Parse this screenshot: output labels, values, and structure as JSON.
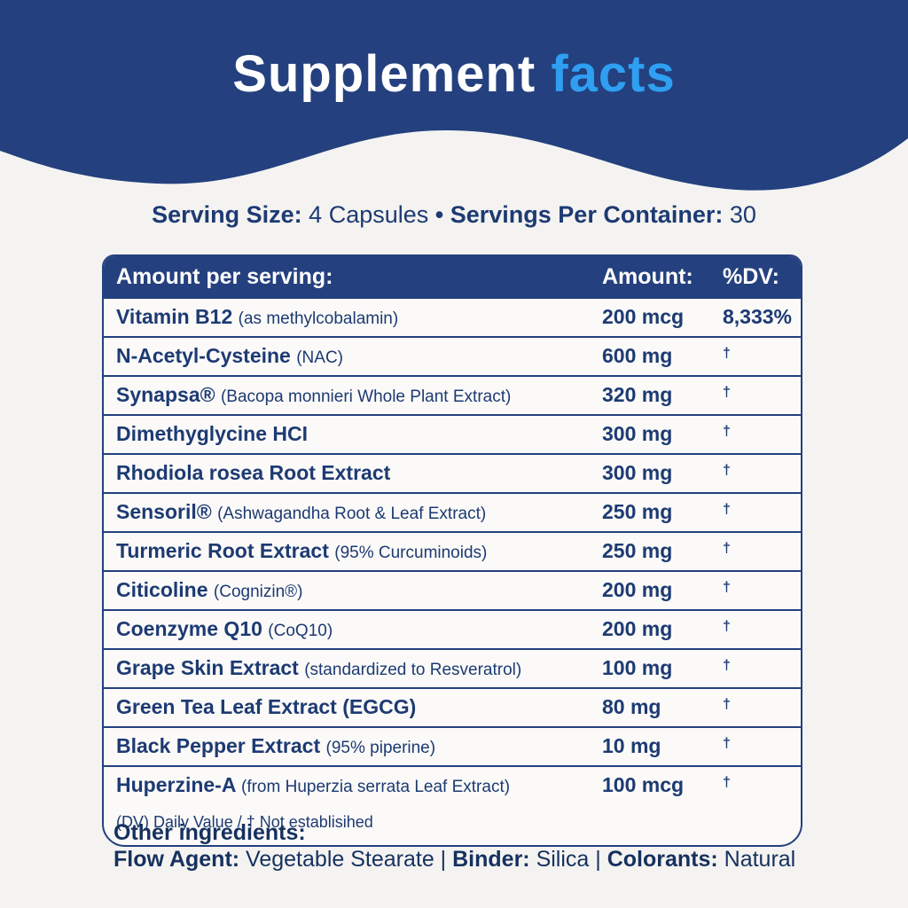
{
  "colors": {
    "navy": "#24407e",
    "accent_blue": "#2f9ff2",
    "text_navy": "#1d3a73",
    "background": "#f4f3f1",
    "table_background": "#fbfaf8"
  },
  "header": {
    "title_part1": "Supplement",
    "title_part2": "facts"
  },
  "serving_line": {
    "label1": "Serving Size:",
    "value1": "4 Capsules",
    "separator": "•",
    "label2": "Servings Per Container:",
    "value2": "30"
  },
  "table": {
    "header": {
      "col_name": "Amount per serving:",
      "col_amount": "Amount:",
      "col_dv": "%DV:"
    },
    "rows": [
      {
        "name": "Vitamin B12",
        "detail": "(as methylcobalamin)",
        "amount": "200 mcg",
        "dv": "8,333%"
      },
      {
        "name": "N-Acetyl-Cysteine",
        "detail": "(NAC)",
        "amount": "600 mg",
        "dv": "†"
      },
      {
        "name": "Synapsa®",
        "detail": "(Bacopa monnieri Whole Plant Extract)",
        "amount": "320 mg",
        "dv": "†"
      },
      {
        "name": "Dimethyglycine HCI",
        "detail": "",
        "amount": "300 mg",
        "dv": "†"
      },
      {
        "name": "Rhodiola rosea Root Extract",
        "detail": "",
        "amount": "300 mg",
        "dv": "†"
      },
      {
        "name": "Sensoril®",
        "detail": "(Ashwagandha Root & Leaf Extract)",
        "amount": "250 mg",
        "dv": "†"
      },
      {
        "name": "Turmeric Root Extract",
        "detail": "(95% Curcuminoids)",
        "amount": "250 mg",
        "dv": "†"
      },
      {
        "name": "Citicoline",
        "detail": "(Cognizin®)",
        "amount": "200 mg",
        "dv": "†"
      },
      {
        "name": "Coenzyme Q10",
        "detail": "(CoQ10)",
        "amount": "200 mg",
        "dv": "†"
      },
      {
        "name": "Grape Skin Extract",
        "detail": "(standardized to Resveratrol)",
        "amount": "100 mg",
        "dv": "†"
      },
      {
        "name": "Green Tea Leaf Extract (EGCG)",
        "detail": "",
        "amount": "80 mg",
        "dv": "†"
      },
      {
        "name": "Black Pepper Extract",
        "detail": "(95% piperine)",
        "amount": "10 mg",
        "dv": "†"
      },
      {
        "name": "Huperzine-A",
        "detail": "(from Huperzia serrata Leaf Extract)",
        "amount": "100 mcg",
        "dv": "†"
      }
    ],
    "footnote": "(DV) Daily Value / † Not establisihed"
  },
  "other_ingredients": {
    "heading": "Other ingredients:",
    "separator": "|",
    "items": [
      {
        "label": "Flow Agent:",
        "value": "Vegetable Stearate"
      },
      {
        "label": "Binder:",
        "value": "Silica"
      },
      {
        "label": "Colorants:",
        "value": "Natural"
      }
    ]
  }
}
